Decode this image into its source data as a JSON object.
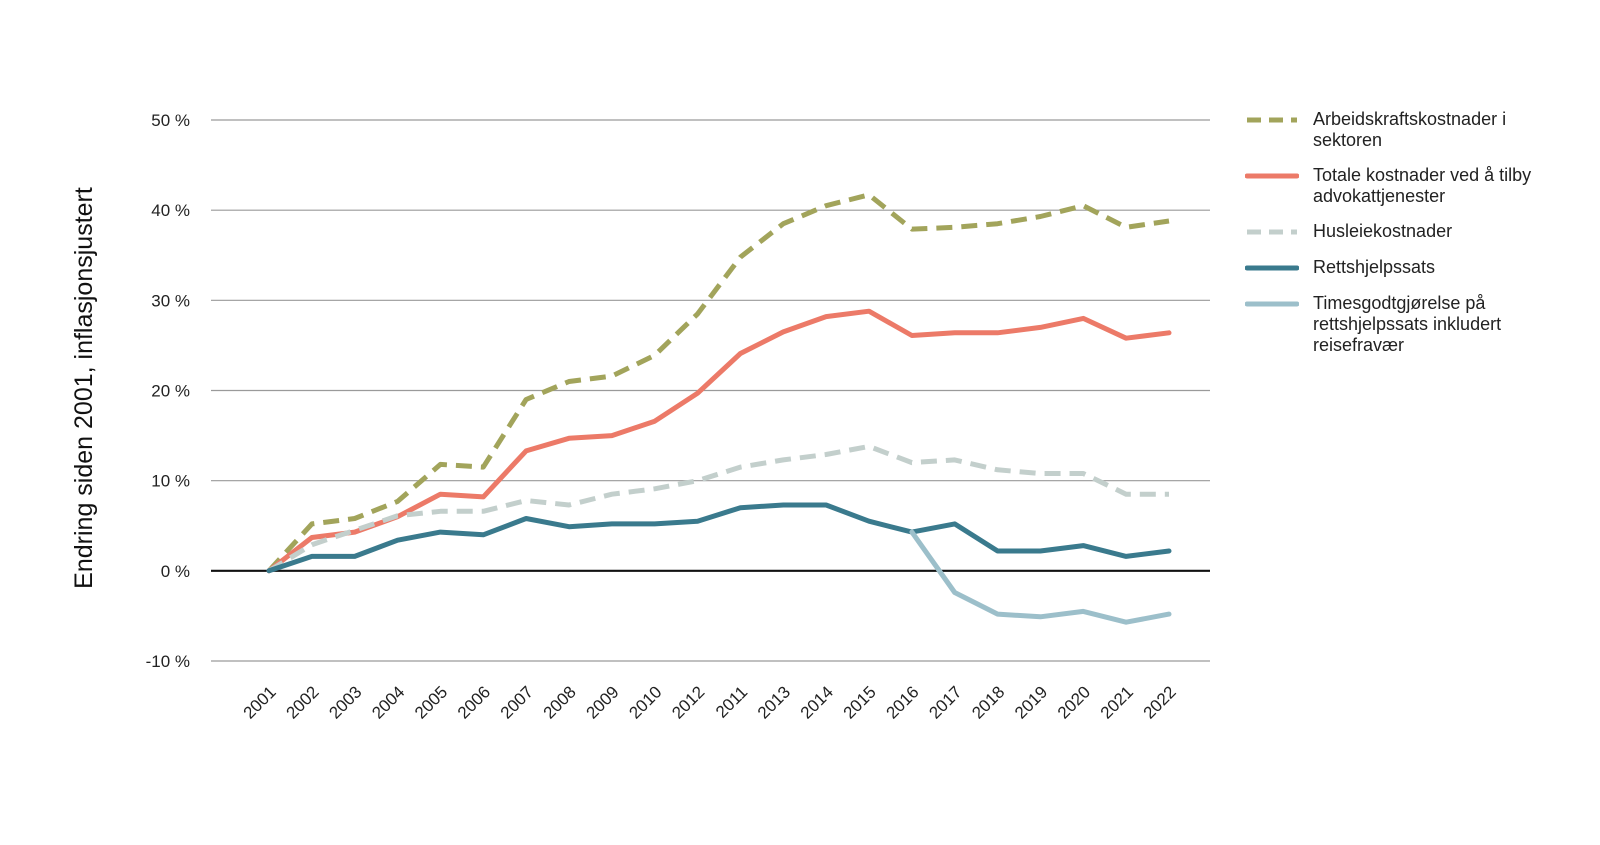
{
  "chart_data": {
    "type": "line",
    "ylabel": "Endring siden 2001, inflasjonsjustert",
    "xlabel": "",
    "ylim": [
      -10,
      50
    ],
    "yticks": [
      "50 %",
      "40 %",
      "30 %",
      "20 %",
      "10 %",
      "0 %",
      "-10 %"
    ],
    "ytick_values": [
      50,
      40,
      30,
      20,
      10,
      0,
      -10
    ],
    "categories": [
      "2001",
      "2002",
      "2003",
      "2004",
      "2005",
      "2006",
      "2007",
      "2008",
      "2009",
      "2010",
      "2012",
      "2011",
      "2013",
      "2014",
      "2015",
      "2016",
      "2017",
      "2018",
      "2019",
      "2020",
      "2021",
      "2022"
    ],
    "grid": true,
    "legend_position": "right",
    "series": [
      {
        "name": "Arbeidskraftskostnader i sektoren",
        "color": "#a2a45b",
        "dashed": true,
        "values": [
          0,
          5.2,
          5.8,
          7.7,
          11.8,
          11.5,
          19,
          21,
          21.6,
          23.9,
          28.5,
          34.8,
          38.5,
          40.5,
          41.7,
          37.9,
          38.1,
          38.5,
          39.3,
          40.5,
          38.1,
          38.8
        ]
      },
      {
        "name": "Totale kostnader ved å tilby advokattjenester",
        "color": "#ec7a68",
        "dashed": false,
        "values": [
          0,
          3.7,
          4.3,
          6,
          8.5,
          8.2,
          13.3,
          14.7,
          15,
          16.6,
          19.7,
          24.1,
          26.5,
          28.2,
          28.8,
          26.1,
          26.4,
          26.4,
          27,
          28,
          25.8,
          26.4
        ]
      },
      {
        "name": "Husleiekostnader",
        "color": "#c3cfcc",
        "dashed": true,
        "values": [
          0,
          2.9,
          4.5,
          6.1,
          6.6,
          6.6,
          7.8,
          7.3,
          8.5,
          9.1,
          10,
          11.5,
          12.3,
          12.9,
          13.8,
          12,
          12.3,
          11.2,
          10.8,
          10.8,
          8.5,
          8.5
        ]
      },
      {
        "name": "Rettshjelpssats",
        "color": "#3a7a8d",
        "dashed": false,
        "values": [
          0,
          1.6,
          1.6,
          3.4,
          4.3,
          4,
          5.8,
          4.9,
          5.2,
          5.2,
          5.5,
          7,
          7.3,
          7.3,
          5.5,
          4.3,
          5.2,
          2.2,
          2.2,
          2.8,
          1.6,
          2.2
        ]
      },
      {
        "name": "Timesgodtgjørelse på rettshjelpssats inkludert reisefravær",
        "color": "#9cbfca",
        "dashed": false,
        "values": [
          null,
          null,
          null,
          null,
          null,
          null,
          null,
          null,
          null,
          null,
          null,
          null,
          null,
          null,
          null,
          4.3,
          -2.4,
          -4.8,
          -5.1,
          -4.5,
          -5.7,
          -4.8
        ]
      }
    ]
  },
  "legend": {
    "items": [
      {
        "label": "Arbeidskraftskostnader i sektoren",
        "color": "#a2a45b",
        "dashed": true
      },
      {
        "label": "Totale kostnader ved å tilby advokattjenester",
        "color": "#ec7a68",
        "dashed": false
      },
      {
        "label": "Husleiekostnader",
        "color": "#c3cfcc",
        "dashed": true
      },
      {
        "label": "Rettshjelpssats",
        "color": "#3a7a8d",
        "dashed": false
      },
      {
        "label": "Timesgodtgjørelse på rettshjelpssats inkludert reisefravær",
        "color": "#9cbfca",
        "dashed": false
      }
    ]
  }
}
